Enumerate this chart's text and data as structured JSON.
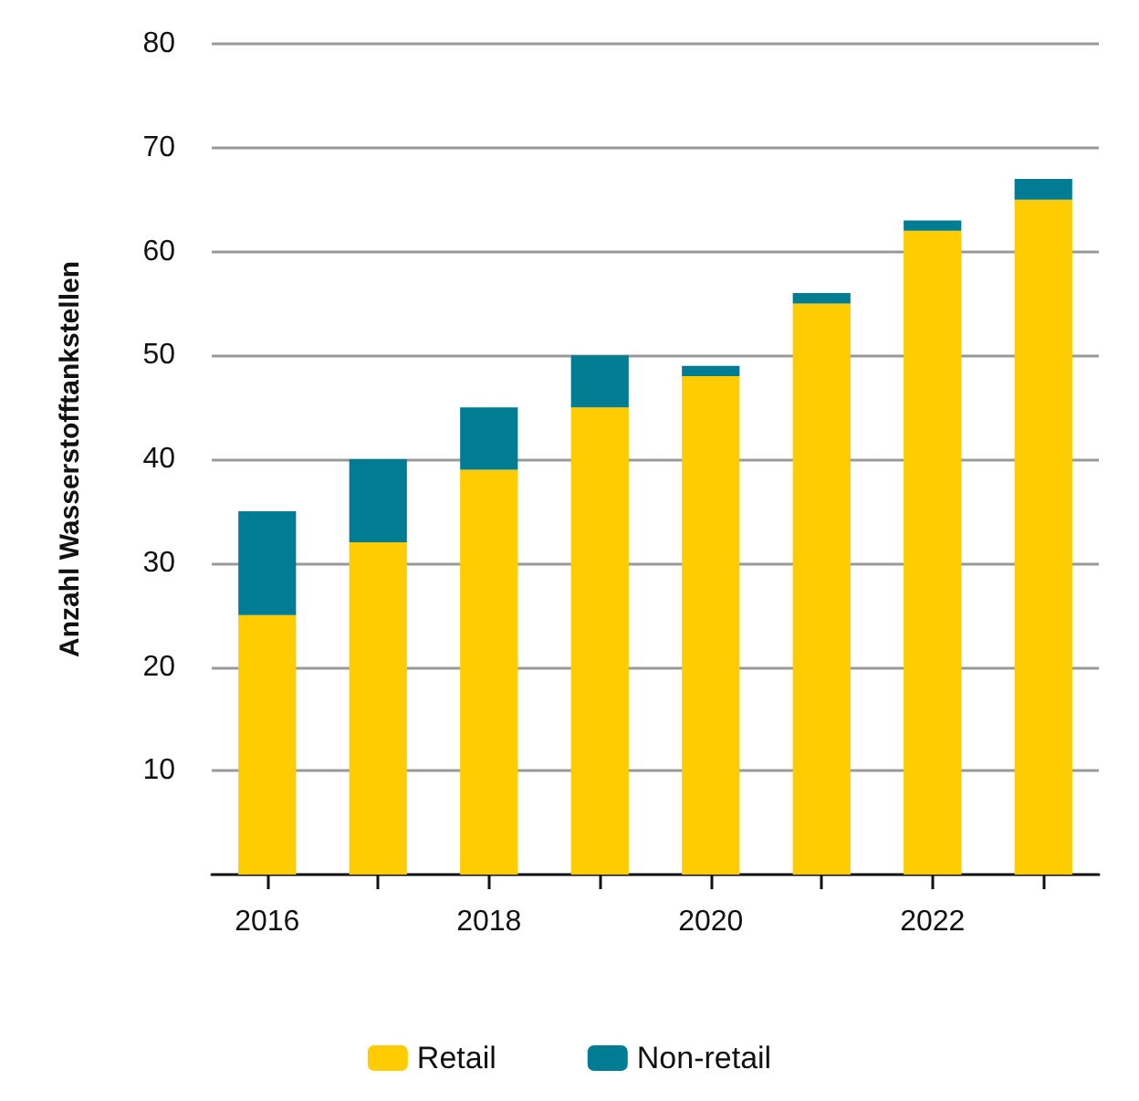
{
  "chart_data": {
    "type": "bar",
    "ylabel": "Anzahl Wasserstofftankstellen",
    "categories": [
      "2016",
      null,
      "2018",
      null,
      "2020",
      null,
      "2022",
      null
    ],
    "stacked": true,
    "series": [
      {
        "name": "Retail",
        "color": "#fecc00",
        "values": [
          25,
          32,
          39,
          45,
          48,
          55,
          62,
          65
        ]
      },
      {
        "name": "Non-retail",
        "color": "#007d93",
        "values": [
          10,
          8,
          6,
          5,
          1,
          1,
          1,
          2
        ]
      }
    ],
    "ylim": [
      0,
      80
    ],
    "yticks": [
      10,
      20,
      30,
      40,
      50,
      60,
      70,
      80
    ],
    "grid": "y",
    "legend": "bottom"
  }
}
